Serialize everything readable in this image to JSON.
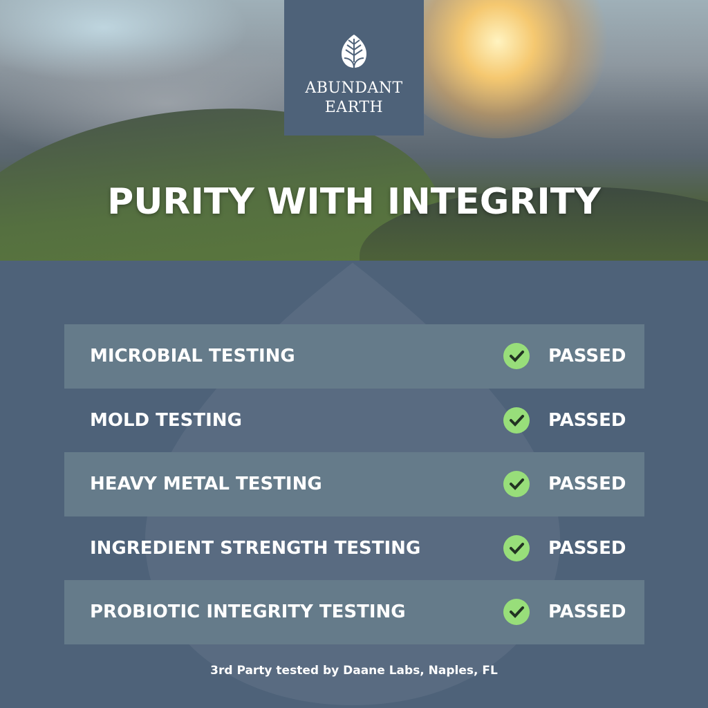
{
  "brand": {
    "name_line1": "ABUNDANT",
    "name_line2": "EARTH",
    "icon": "leaf-icon"
  },
  "headline": "PURITY WITH INTEGRITY",
  "tests": [
    {
      "label": "MICROBIAL TESTING",
      "status": "PASSED"
    },
    {
      "label": "MOLD TESTING",
      "status": "PASSED"
    },
    {
      "label": "HEAVY METAL TESTING",
      "status": "PASSED"
    },
    {
      "label": "INGREDIENT STRENGTH TESTING",
      "status": "PASSED"
    },
    {
      "label": "PROBIOTIC INTEGRITY TESTING",
      "status": "PASSED"
    }
  ],
  "footer": "3rd Party tested by Daane Labs, Naples, FL",
  "colors": {
    "background": "#4e6279",
    "row_alt": "#657b8a",
    "check": "#98de7a"
  }
}
